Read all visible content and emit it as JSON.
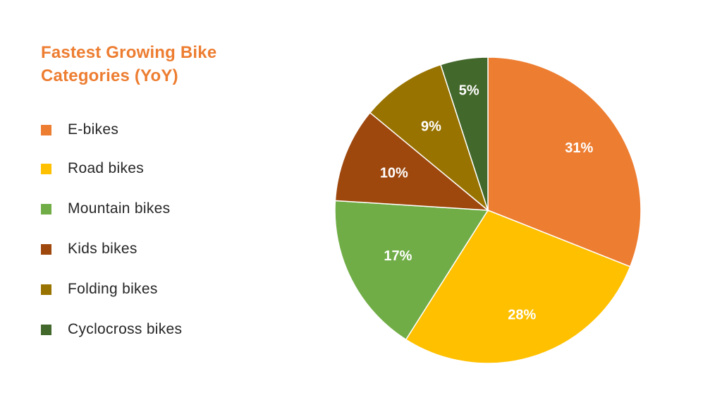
{
  "chart_data": {
    "type": "pie",
    "title_lines": [
      "Fastest Growing Bike",
      "Categories (YoY)"
    ],
    "categories": [
      "E-bikes",
      "Road bikes",
      "Mountain bikes",
      "Kids bikes",
      "Folding bikes",
      "Cyclocross bikes"
    ],
    "values": [
      31,
      28,
      17,
      10,
      9,
      5
    ],
    "data_labels": [
      "31%",
      "28%",
      "17%",
      "10%",
      "9%",
      "5%"
    ],
    "colors": [
      "#ED7D31",
      "#FFC000",
      "#70AD47",
      "#9E480E",
      "#997300",
      "#43682B"
    ],
    "legend_position": "left",
    "start_angle": "12 o'clock",
    "direction": "clockwise"
  }
}
